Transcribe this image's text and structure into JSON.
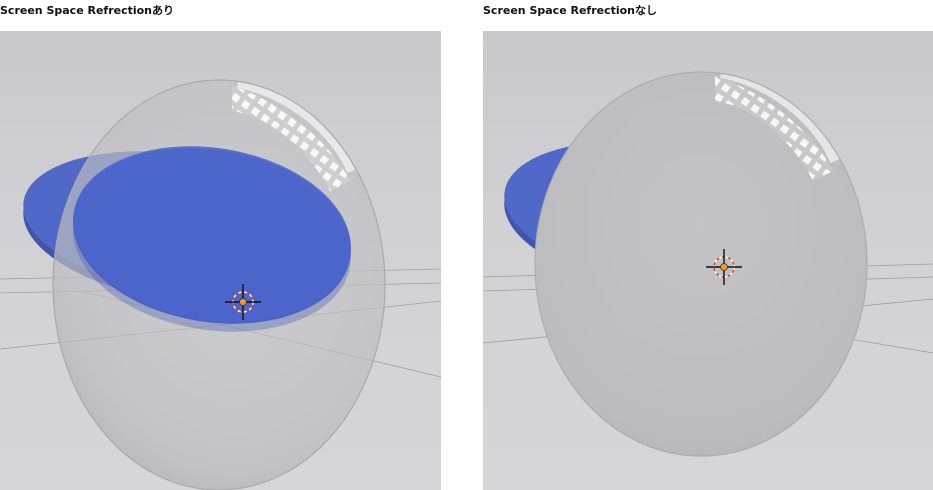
{
  "panels": [
    {
      "caption": "Screen Space Refrectionあり",
      "ssr_enabled": true,
      "colors": {
        "disk": "#4f67c9",
        "disk_edge": "#3f55b0",
        "sphere": "#c4c4c6",
        "background": "#cfcfd1",
        "cursor_dot": "#f09a2a"
      }
    },
    {
      "caption": "Screen Space Refrectionなし",
      "ssr_enabled": false,
      "colors": {
        "disk": "#4f67c9",
        "disk_edge": "#3f55b0",
        "sphere": "#c2c2c4",
        "background": "#cfcfd1",
        "cursor_dot": "#f09a2a"
      }
    }
  ],
  "icons": {
    "cursor": "3d-cursor-crosshair-icon"
  }
}
